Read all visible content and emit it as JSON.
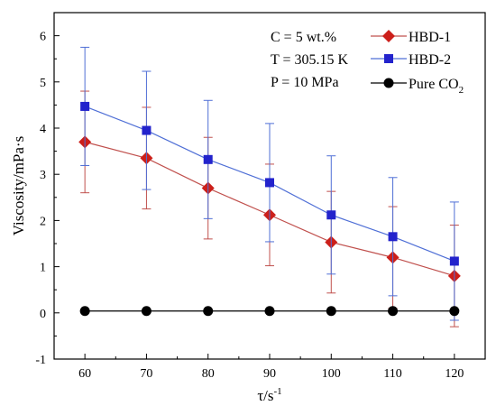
{
  "chart_data": {
    "type": "line",
    "xlabel": "τ/s",
    "xlabel_sup": "-1",
    "ylabel": "Viscosity/mPa·s",
    "xlim": [
      55,
      125
    ],
    "ylim": [
      -1,
      6.5
    ],
    "x_ticks": [
      60,
      70,
      80,
      90,
      100,
      110,
      120
    ],
    "y_ticks": [
      -1,
      0,
      1,
      2,
      3,
      4,
      5,
      6
    ],
    "grid": false,
    "legend_position": "top-right",
    "annotations": [
      "C = 5 wt.%",
      "T = 305.15 K",
      "P = 10 MPa"
    ],
    "x": [
      60,
      70,
      80,
      90,
      100,
      110,
      120
    ],
    "series": [
      {
        "name": "HBD-1",
        "color": "#cc1f1a",
        "line_color": "#c0504d",
        "marker": "diamond",
        "values": [
          3.7,
          3.35,
          2.7,
          2.12,
          1.53,
          1.2,
          0.8
        ],
        "error": [
          1.1,
          1.1,
          1.1,
          1.1,
          1.1,
          1.1,
          1.1
        ]
      },
      {
        "name": "HBD-2",
        "color": "#2323cc",
        "line_color": "#4f6fd6",
        "marker": "square",
        "values": [
          4.47,
          3.95,
          3.32,
          2.82,
          2.12,
          1.65,
          1.12
        ],
        "error": [
          1.28,
          1.28,
          1.28,
          1.28,
          1.28,
          1.28,
          1.28
        ]
      },
      {
        "name": "Pure CO",
        "name_sub": "2",
        "color": "#000000",
        "line_color": "#000000",
        "marker": "circle",
        "values": [
          0.04,
          0.04,
          0.04,
          0.04,
          0.04,
          0.04,
          0.04
        ],
        "error": [
          0,
          0,
          0,
          0,
          0,
          0,
          0
        ]
      }
    ]
  }
}
